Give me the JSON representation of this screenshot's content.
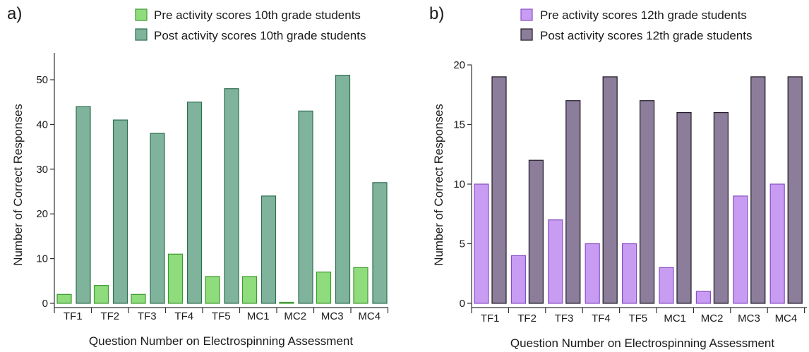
{
  "chart_data": [
    {
      "panel_label": "a)",
      "type": "bar",
      "categories": [
        "TF1",
        "TF2",
        "TF3",
        "TF4",
        "TF5",
        "MC1",
        "MC2",
        "MC3",
        "MC4"
      ],
      "series": [
        {
          "name": "Pre activity scores 10th grade students",
          "values": [
            2,
            4,
            2,
            11,
            6,
            6,
            0.2,
            7,
            8
          ],
          "color": "#8fdc7c",
          "stroke": "#3f9a32"
        },
        {
          "name": "Post activity scores 10th grade students",
          "values": [
            44,
            41,
            38,
            45,
            48,
            24,
            43,
            51,
            27
          ],
          "color": "#80b39b",
          "stroke": "#2e6e52"
        }
      ],
      "xlabel": "Question Number on Electrospinning Assessment",
      "ylabel": "Number of Correct Responses",
      "ylim": [
        0,
        56
      ],
      "yticks": [
        0,
        10,
        20,
        30,
        40,
        50
      ],
      "grid": false,
      "legend": "top"
    },
    {
      "panel_label": "b)",
      "type": "bar",
      "categories": [
        "TF1",
        "TF2",
        "TF3",
        "TF4",
        "TF5",
        "MC1",
        "MC2",
        "MC3",
        "MC4"
      ],
      "series": [
        {
          "name": "Pre activity scores 12th grade students",
          "values": [
            10,
            4,
            7,
            5,
            5,
            3,
            1,
            9,
            10
          ],
          "color": "#c89cf2",
          "stroke": "#8a4fc4"
        },
        {
          "name": "Post activity scores 12th grade students",
          "values": [
            19,
            12,
            17,
            19,
            17,
            16,
            16,
            19,
            19
          ],
          "color": "#8c7d9b",
          "stroke": "#1e1a26"
        }
      ],
      "xlabel": "Question Number on Electrospinning Assessment",
      "ylabel": "Number of Correct Responses",
      "ylim": [
        0,
        20
      ],
      "yticks": [
        0,
        5,
        10,
        15,
        20
      ],
      "grid": false,
      "legend": "top"
    }
  ]
}
